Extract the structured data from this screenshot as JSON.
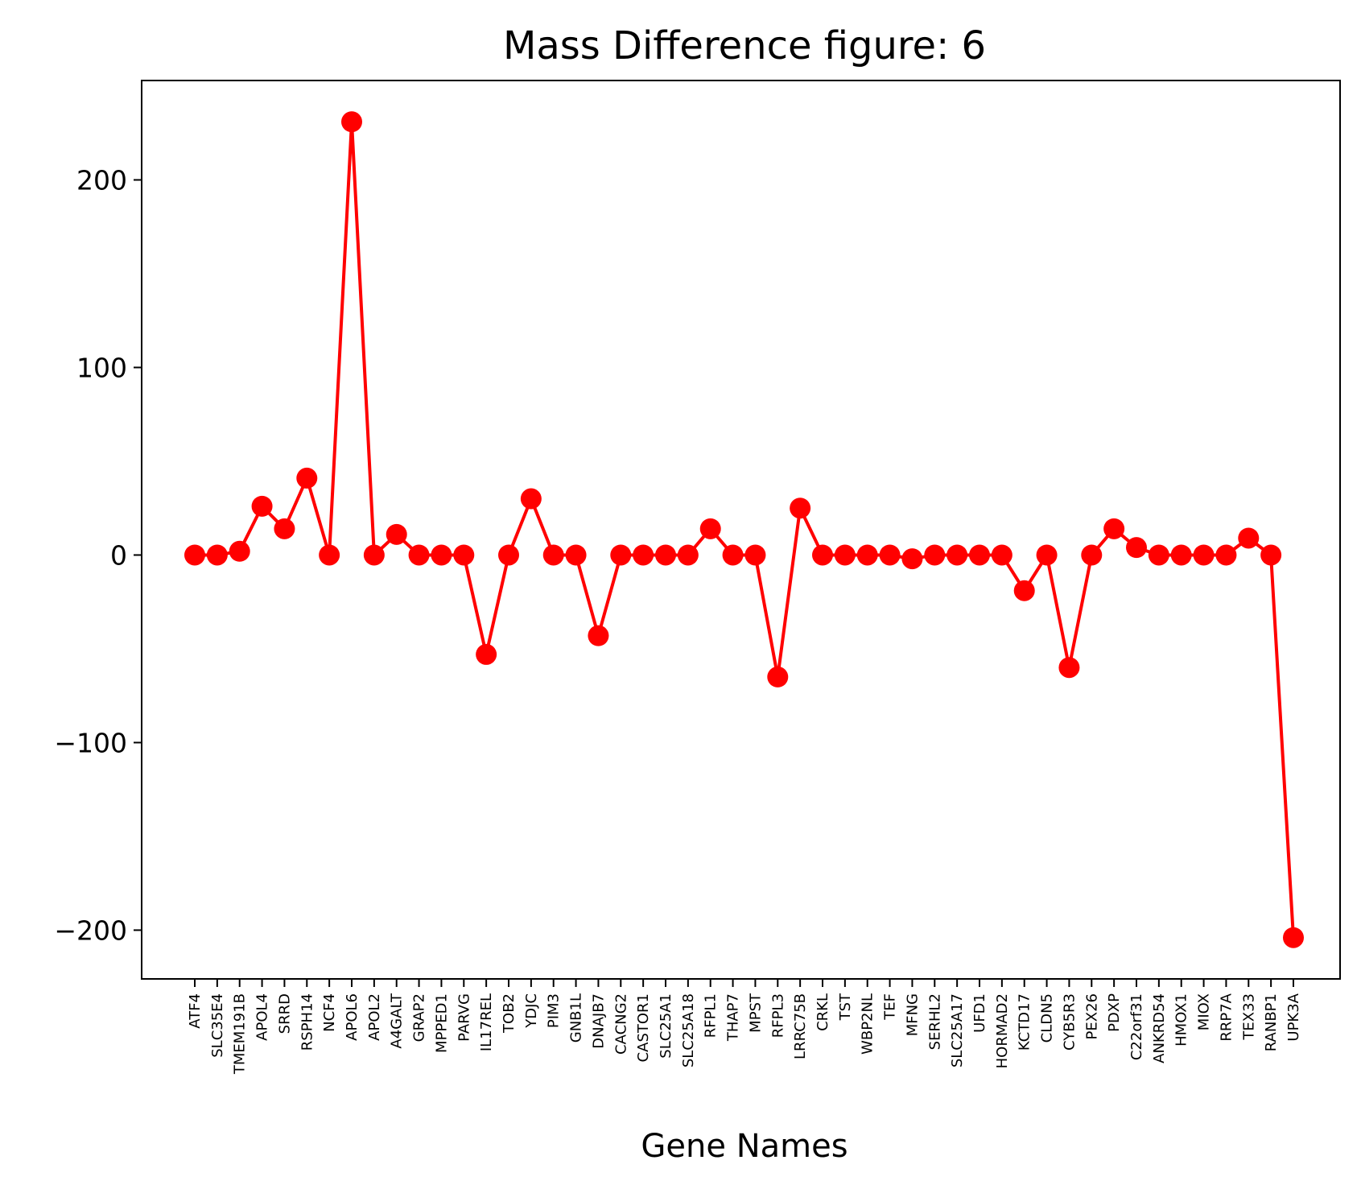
{
  "chart_data": {
    "type": "line",
    "title": "Mass Difference figure: 6",
    "xlabel": "Gene Names",
    "ylabel": "",
    "ylim": [
      -226,
      253
    ],
    "yticks": [
      200,
      100,
      0,
      -100,
      -200
    ],
    "ytick_labels": [
      "200",
      "100",
      "0",
      "−100",
      "−200"
    ],
    "grid": false,
    "marker": "circle",
    "color": "#ff0000",
    "categories": [
      "ATF4",
      "SLC35E4",
      "TMEM191B",
      "APOL4",
      "SRRD",
      "RSPH14",
      "NCF4",
      "APOL6",
      "APOL2",
      "A4GALT",
      "GRAP2",
      "MPPED1",
      "PARVG",
      "IL17REL",
      "TOB2",
      "YDJC",
      "PIM3",
      "GNB1L",
      "DNAJB7",
      "CACNG2",
      "CASTOR1",
      "SLC25A1",
      "SLC25A18",
      "RFPL1",
      "THAP7",
      "MPST",
      "RFPL3",
      "LRRC75B",
      "CRKL",
      "TST",
      "WBP2NL",
      "TEF",
      "MFNG",
      "SERHL2",
      "SLC25A17",
      "UFD1",
      "HORMAD2",
      "KCTD17",
      "CLDN5",
      "CYB5R3",
      "PEX26",
      "PDXP",
      "C22orf31",
      "ANKRD54",
      "HMOX1",
      "MIOX",
      "RRP7A",
      "TEX33",
      "RANBP1",
      "UPK3A"
    ],
    "series": [
      {
        "values": [
          0,
          0,
          2,
          26,
          14,
          41,
          0,
          231,
          0,
          11,
          0,
          0,
          0,
          -53,
          0,
          30,
          0,
          0,
          -43,
          0,
          0,
          0,
          0,
          14,
          0,
          0,
          -65,
          25,
          0,
          0,
          0,
          0,
          -2,
          0,
          0,
          0,
          0,
          -19,
          0,
          -60,
          0,
          14,
          4,
          0,
          0,
          0,
          0,
          9,
          0,
          -204
        ]
      }
    ]
  }
}
